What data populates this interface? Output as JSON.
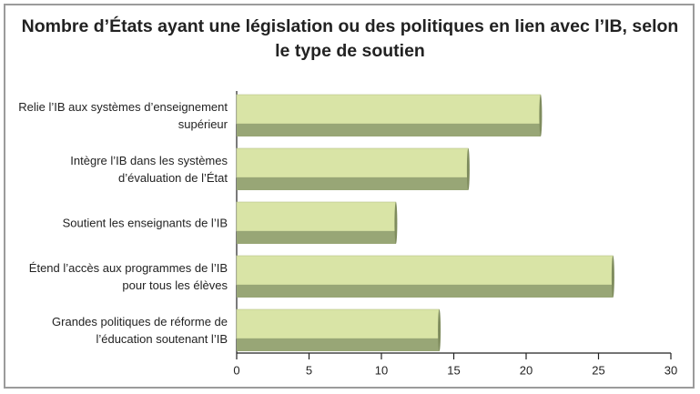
{
  "chart_data": {
    "type": "bar",
    "orientation": "horizontal",
    "title": "Nombre d’États ayant une législation ou des politiques en lien avec l’IB, selon le type de soutien",
    "categories": [
      "Relie l’IB aux systèmes d’enseignement supérieur",
      "Intègre l’IB dans les systèmes d’évaluation de l’État",
      "Soutient les enseignants de l’IB",
      "Étend l’accès aux programmes de l’IB pour tous les élèves",
      "Grandes politiques de réforme de l’éducation soutenant l’IB"
    ],
    "values": [
      21,
      16,
      11,
      26,
      14
    ],
    "color": "#d9e4a6",
    "xlim": [
      0,
      30
    ],
    "xticks": [
      0,
      5,
      10,
      15,
      20,
      25,
      30
    ]
  }
}
